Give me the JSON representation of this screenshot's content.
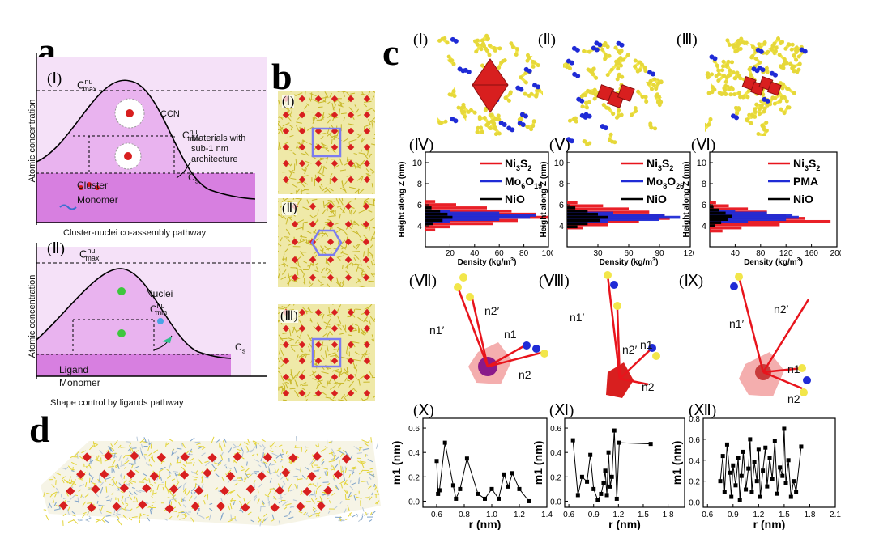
{
  "panels": {
    "a": {
      "letter": "a",
      "sub1": {
        "roman": "(Ⅰ)",
        "cmax": "C",
        "cmax_sup": "nu",
        "cmax_sub": "max",
        "ccn": "CCN",
        "cmin": "C",
        "cmin_sup": "nu",
        "cmin_sub": "min",
        "materials_note_lines": [
          "Materials with",
          "sub-1 nm",
          "architecture"
        ],
        "cs": "C",
        "cs_sub": "s",
        "cluster": "Cluster",
        "monomer": "Monomer",
        "ylabel": "Atomic concentration",
        "caption": "Cluster-nuclei co-assembly pathway"
      },
      "sub2": {
        "roman": "(Ⅱ)",
        "cmax": "C",
        "cmax_sup": "nu",
        "cmax_sub": "max",
        "nuclei": "Nuclei",
        "cmin": "C",
        "cmin_sup": "nu",
        "cmin_sub": "min",
        "cs": "C",
        "cs_sub": "s",
        "ligand": "Ligand",
        "monomer": "Monomer",
        "ylabel": "Atomic concentration",
        "caption": "Shape control by ligands pathway"
      }
    },
    "b": {
      "letter": "b",
      "sub_labels": [
        "(Ⅰ)",
        "(Ⅱ)",
        "(Ⅲ)"
      ]
    },
    "c": {
      "letter": "c",
      "top_labels": [
        "(Ⅰ)",
        "(Ⅱ)",
        "(Ⅲ)"
      ],
      "density_labels": [
        "(Ⅳ)",
        "(Ⅴ)",
        "(Ⅵ)"
      ],
      "structure_labels": [
        "(Ⅶ)",
        "(Ⅷ)",
        "(Ⅸ)"
      ],
      "m1_labels": [
        "(Ⅹ)",
        "(Ⅺ)",
        "(Ⅻ)"
      ],
      "struct_annotations": {
        "s7": [
          "n2′",
          "n1′",
          "n1",
          "n2"
        ],
        "s8": [
          "n1′",
          "n2′",
          "n1",
          "n2"
        ],
        "s9": [
          "n2′",
          "n1′",
          "n1",
          "n2"
        ]
      }
    },
    "d": {
      "letter": "d"
    }
  },
  "colors": {
    "mauve_dark": "#d77fe0",
    "mauve_mid": "#e9b3ef",
    "mauve_light": "#f5e1f8",
    "ni3s2": "#e8141c",
    "mo": "#1f2bd6",
    "nio": "#000000",
    "yellow_chain": "#f2e64a",
    "red_octa": "#d81f1f"
  },
  "chart_data": [
    {
      "id": "IV",
      "type": "bar",
      "orientation": "horizontal",
      "xlabel": "Density (kg/m",
      "xlabel_sup": "3",
      "xlabel_tail": ")",
      "ylabel": "Height along Z (nm)",
      "xlim": [
        0,
        100
      ],
      "ylim": [
        2,
        11
      ],
      "xticks": [
        20,
        40,
        60,
        80,
        100
      ],
      "yticks": [
        4,
        6,
        8,
        10
      ],
      "legend": [
        {
          "name": "Ni",
          "sub1": "3",
          "mid": "S",
          "sub2": "2",
          "color": "#e8141c"
        },
        {
          "name": "Mo",
          "sub1": "6",
          "mid": "O",
          "sub2": "19",
          "color": "#1f2bd6"
        },
        {
          "name": "NiO",
          "sub1": "",
          "mid": "",
          "sub2": "",
          "color": "#000000"
        }
      ],
      "series": [
        {
          "name": "Ni3S2",
          "color": "#e8141c",
          "z": [
            3.6,
            3.9,
            4.2,
            4.5,
            4.8,
            5.1,
            5.4,
            5.7,
            6.0,
            6.3
          ],
          "values": [
            8,
            20,
            55,
            75,
            100,
            90,
            70,
            50,
            25,
            8
          ]
        },
        {
          "name": "Mo6O19",
          "color": "#1f2bd6",
          "z": [
            4.4,
            4.6,
            4.8,
            5.0,
            5.2,
            5.4
          ],
          "values": [
            20,
            60,
            85,
            90,
            60,
            20
          ]
        },
        {
          "name": "NiO",
          "color": "#000000",
          "z": [
            4.2,
            4.5,
            4.8,
            5.1,
            5.4,
            5.7
          ],
          "values": [
            6,
            14,
            22,
            18,
            12,
            5
          ]
        }
      ]
    },
    {
      "id": "V",
      "type": "bar",
      "orientation": "horizontal",
      "xlabel": "Density (kg/m",
      "xlabel_sup": "3",
      "xlabel_tail": ")",
      "ylabel": "Height along Z (nm)",
      "xlim": [
        0,
        120
      ],
      "ylim": [
        2,
        11
      ],
      "xticks": [
        30,
        60,
        90,
        120
      ],
      "yticks": [
        4,
        6,
        8,
        10
      ],
      "legend": [
        {
          "name": "Ni",
          "sub1": "3",
          "mid": "S",
          "sub2": "2",
          "color": "#e8141c"
        },
        {
          "name": "Mo",
          "sub1": "8",
          "mid": "O",
          "sub2": "26",
          "color": "#1f2bd6"
        },
        {
          "name": "NiO",
          "sub1": "",
          "mid": "",
          "sub2": "",
          "color": "#000000"
        }
      ],
      "series": [
        {
          "name": "Ni3S2",
          "color": "#e8141c",
          "z": [
            3.8,
            4.1,
            4.4,
            4.7,
            5.0,
            5.3,
            5.6,
            5.9,
            6.2
          ],
          "values": [
            15,
            40,
            70,
            100,
            95,
            80,
            60,
            35,
            10
          ]
        },
        {
          "name": "Mo8O26",
          "color": "#1f2bd6",
          "z": [
            4.4,
            4.6,
            4.8,
            5.0,
            5.2
          ],
          "values": [
            40,
            90,
            110,
            95,
            45
          ]
        },
        {
          "name": "NiO",
          "color": "#000000",
          "z": [
            3.9,
            4.2,
            4.5,
            4.8,
            5.1,
            5.4,
            5.7
          ],
          "values": [
            10,
            20,
            32,
            40,
            30,
            20,
            8
          ]
        }
      ]
    },
    {
      "id": "VI",
      "type": "bar",
      "orientation": "horizontal",
      "xlabel": "Density (kg/m",
      "xlabel_sup": "3",
      "xlabel_tail": ")",
      "ylabel": "Height along Z (nm)",
      "xlim": [
        0,
        200
      ],
      "ylim": [
        2,
        11
      ],
      "xticks": [
        40,
        80,
        120,
        160,
        200
      ],
      "yticks": [
        4,
        6,
        8,
        10
      ],
      "legend": [
        {
          "name": "Ni",
          "sub1": "3",
          "mid": "S",
          "sub2": "2",
          "color": "#e8141c"
        },
        {
          "name": "PMA",
          "sub1": "",
          "mid": "",
          "sub2": "",
          "color": "#1f2bd6"
        },
        {
          "name": "NiO",
          "sub1": "",
          "mid": "",
          "sub2": "",
          "color": "#000000"
        }
      ],
      "series": [
        {
          "name": "Ni3S2",
          "color": "#e8141c",
          "z": [
            3.5,
            3.8,
            4.1,
            4.4,
            4.7,
            5.0,
            5.3,
            5.6,
            5.9,
            6.2
          ],
          "values": [
            20,
            50,
            110,
            190,
            150,
            120,
            90,
            60,
            30,
            10
          ]
        },
        {
          "name": "PMA",
          "color": "#1f2bd6",
          "z": [
            4.4,
            4.6,
            4.8,
            5.0,
            5.2,
            5.4
          ],
          "values": [
            60,
            120,
            140,
            130,
            90,
            40
          ]
        },
        {
          "name": "NiO",
          "color": "#000000",
          "z": [
            4.0,
            4.3,
            4.6,
            4.9,
            5.2,
            5.5,
            5.8
          ],
          "values": [
            8,
            18,
            28,
            35,
            25,
            15,
            6
          ]
        }
      ]
    },
    {
      "id": "X",
      "type": "line",
      "xlabel": "r (nm)",
      "ylabel": "m1 (nm)",
      "xlim": [
        0.5,
        1.4
      ],
      "ylim": [
        -0.05,
        0.68
      ],
      "xticks": [
        0.6,
        0.8,
        1.0,
        1.2,
        1.4
      ],
      "yticks": [
        0.0,
        0.2,
        0.4,
        0.6
      ],
      "series": [
        {
          "name": "",
          "x": [
            0.6,
            0.61,
            0.62,
            0.66,
            0.72,
            0.74,
            0.77,
            0.82,
            0.9,
            0.95,
            1.0,
            1.05,
            1.09,
            1.12,
            1.15,
            1.2,
            1.27
          ],
          "y": [
            0.33,
            0.06,
            0.09,
            0.48,
            0.13,
            0.02,
            0.1,
            0.35,
            0.06,
            0.02,
            0.1,
            0.02,
            0.22,
            0.12,
            0.23,
            0.1,
            0.0
          ]
        }
      ]
    },
    {
      "id": "XI",
      "type": "line",
      "xlabel": "r (nm)",
      "ylabel": "m1 (nm)",
      "xlim": [
        0.55,
        2.0
      ],
      "ylim": [
        -0.05,
        0.68
      ],
      "xticks": [
        0.6,
        0.9,
        1.2,
        1.5,
        1.8
      ],
      "yticks": [
        0.0,
        0.2,
        0.4,
        0.6
      ],
      "series": [
        {
          "name": "",
          "x": [
            0.65,
            0.71,
            0.76,
            0.82,
            0.86,
            0.9,
            0.95,
            0.99,
            1.02,
            1.04,
            1.06,
            1.08,
            1.1,
            1.12,
            1.15,
            1.18,
            1.21,
            1.59
          ],
          "y": [
            0.5,
            0.05,
            0.2,
            0.16,
            0.38,
            0.1,
            0.01,
            0.06,
            0.15,
            0.25,
            0.05,
            0.4,
            0.12,
            0.2,
            0.58,
            0.02,
            0.48,
            0.47
          ]
        }
      ]
    },
    {
      "id": "XII",
      "type": "line",
      "xlabel": "r (nm)",
      "ylabel": "m1 (nm)",
      "xlim": [
        0.55,
        2.1
      ],
      "ylim": [
        -0.05,
        0.8
      ],
      "xticks": [
        0.6,
        0.9,
        1.2,
        1.5,
        1.8,
        2.1
      ],
      "yticks": [
        0.0,
        0.2,
        0.4,
        0.6,
        0.8
      ],
      "series": [
        {
          "name": "",
          "x": [
            0.75,
            0.78,
            0.8,
            0.83,
            0.86,
            0.88,
            0.9,
            0.93,
            0.96,
            0.98,
            1.0,
            1.02,
            1.05,
            1.08,
            1.1,
            1.12,
            1.15,
            1.18,
            1.2,
            1.22,
            1.25,
            1.28,
            1.3,
            1.33,
            1.36,
            1.39,
            1.42,
            1.45,
            1.48,
            1.5,
            1.52,
            1.55,
            1.58,
            1.61,
            1.64,
            1.7
          ],
          "y": [
            0.2,
            0.44,
            0.1,
            0.55,
            0.28,
            0.05,
            0.35,
            0.16,
            0.42,
            0.02,
            0.25,
            0.48,
            0.12,
            0.32,
            0.6,
            0.1,
            0.38,
            0.2,
            0.5,
            0.05,
            0.3,
            0.52,
            0.15,
            0.42,
            0.22,
            0.58,
            0.08,
            0.33,
            0.25,
            0.7,
            0.18,
            0.4,
            0.05,
            0.2,
            0.1,
            0.53
          ]
        }
      ]
    }
  ]
}
